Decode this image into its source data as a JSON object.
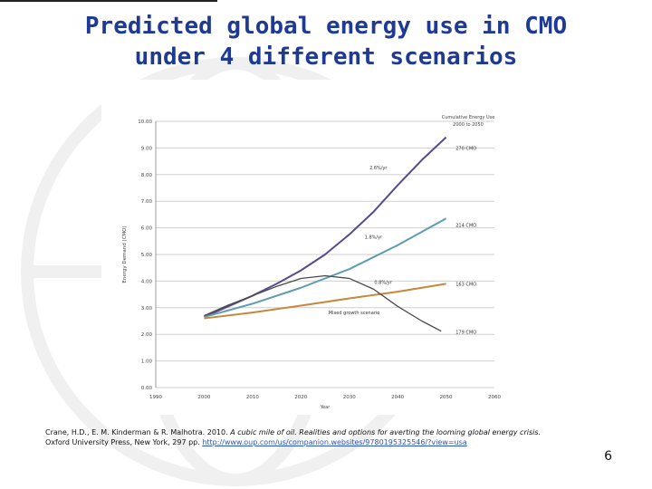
{
  "title": [
    "Predicted global energy use in CMO",
    "under 4 different scenarios"
  ],
  "chart_data": {
    "type": "line",
    "xlabel": "Year",
    "ylabel": "Energy Demand (CMO)",
    "xlim": [
      1990,
      2060
    ],
    "ylim": [
      0,
      10
    ],
    "xticks": [
      "1990",
      "2000",
      "2010",
      "2020",
      "2030",
      "2040",
      "2050",
      "2060"
    ],
    "yticks": [
      "0.00",
      "1.00",
      "2.00",
      "3.00",
      "4.00",
      "5.00",
      "6.00",
      "7.00",
      "8.00",
      "9.00",
      "10.00"
    ],
    "grid": "horizontal",
    "legend_title": [
      "Cumulative Energy Use",
      "2000 to 2050"
    ],
    "series": [
      {
        "name": "2.6%/yr",
        "end_label": "270 CMO",
        "color": "#5a4a8c",
        "x": [
          2000,
          2005,
          2010,
          2015,
          2020,
          2025,
          2030,
          2035,
          2040,
          2045,
          2050
        ],
        "y": [
          2.65,
          3.05,
          3.45,
          3.9,
          4.4,
          5.0,
          5.75,
          6.6,
          7.6,
          8.55,
          9.4
        ]
      },
      {
        "name": "1.8%/yr",
        "end_label": "214 CMO",
        "color": "#5f9cb2",
        "x": [
          2000,
          2010,
          2020,
          2030,
          2040,
          2050
        ],
        "y": [
          2.65,
          3.15,
          3.75,
          4.45,
          5.35,
          6.35
        ]
      },
      {
        "name": "0.8%/yr",
        "end_label": "163 CMO",
        "color": "#c8873c",
        "x": [
          2000,
          2010,
          2020,
          2030,
          2040,
          2050
        ],
        "y": [
          2.6,
          2.82,
          3.08,
          3.35,
          3.6,
          3.9
        ]
      },
      {
        "name": "Mixed growth scenario",
        "end_label": "179 CMO",
        "color": "#4a4a4a",
        "x": [
          2000,
          2005,
          2010,
          2015,
          2020,
          2025,
          2030,
          2035,
          2040,
          2045,
          2049
        ],
        "y": [
          2.7,
          3.1,
          3.45,
          3.8,
          4.1,
          4.2,
          4.1,
          3.7,
          3.05,
          2.5,
          2.12
        ]
      }
    ]
  },
  "citation": {
    "line1_authors": "Crane, H.D., E. M. Kinderman & R. Malhotra. 2010. ",
    "line1_italic": "A cubic mile of oil. Realities and options for averting the looming global energy crisis.",
    "line2": "Oxford University Press, New York, 297 pp. ",
    "link": "http://www.oup.com/us/companion.websites/9780195325546/?view=usa"
  },
  "page_number": "6"
}
